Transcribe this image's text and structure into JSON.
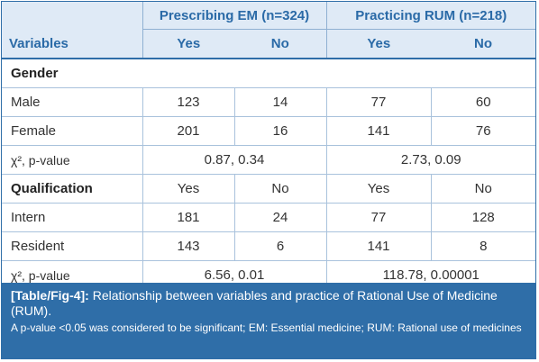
{
  "table": {
    "header": {
      "variables": "Variables",
      "group1": "Prescribing EM (n=324)",
      "group2": "Practicing RUM (n=218)",
      "yes": "Yes",
      "no": "No"
    },
    "sections": [
      {
        "title": "Gender",
        "subheader": null,
        "rows": [
          {
            "label": "Male",
            "values": [
              "123",
              "14",
              "77",
              "60"
            ]
          },
          {
            "label": "Female",
            "values": [
              "201",
              "16",
              "141",
              "76"
            ]
          }
        ],
        "stat": {
          "label": "χ², p-value",
          "em": "0.87, 0.34",
          "rum": "2.73, 0.09"
        }
      },
      {
        "title": "Qualification",
        "subheader": [
          "Yes",
          "No",
          "Yes",
          "No"
        ],
        "rows": [
          {
            "label": "Intern",
            "values": [
              "181",
              "24",
              "77",
              "128"
            ]
          },
          {
            "label": "Resident",
            "values": [
              "143",
              "6",
              "141",
              "8"
            ]
          }
        ],
        "stat": {
          "label": "χ², p-value",
          "em": "6.56, 0.01",
          "rum": "118.78, 0.00001"
        }
      }
    ]
  },
  "caption": {
    "ref": "[Table/Fig-4]:",
    "title": " Relationship between variables and practice of Rational Use of Medicine (RUM).",
    "note": "A p-value <0.05 was considered to be significant; EM: Essential medicine; RUM: Rational use of medicines"
  },
  "colors": {
    "header_bg": "#dfeaf6",
    "header_text": "#2a6aa7",
    "caption_bg": "#2f6ea8"
  }
}
